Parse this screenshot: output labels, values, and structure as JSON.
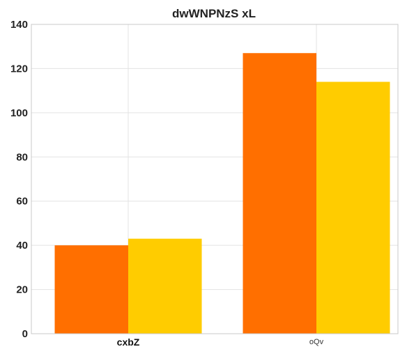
{
  "chart_data": {
    "type": "bar",
    "title": "dwWNPNzS xL",
    "xlabel": "",
    "ylabel": "",
    "categories": [
      "cxbZ",
      "oQv"
    ],
    "series": [
      {
        "values": [
          40,
          127
        ],
        "color": "#ff6f00"
      },
      {
        "values": [
          43,
          114
        ],
        "color": "#ffcc00"
      }
    ],
    "ylim": [
      0,
      140
    ],
    "yticks": [
      0,
      20,
      40,
      60,
      80,
      100,
      120,
      140
    ],
    "grid": true,
    "legend": "none"
  }
}
